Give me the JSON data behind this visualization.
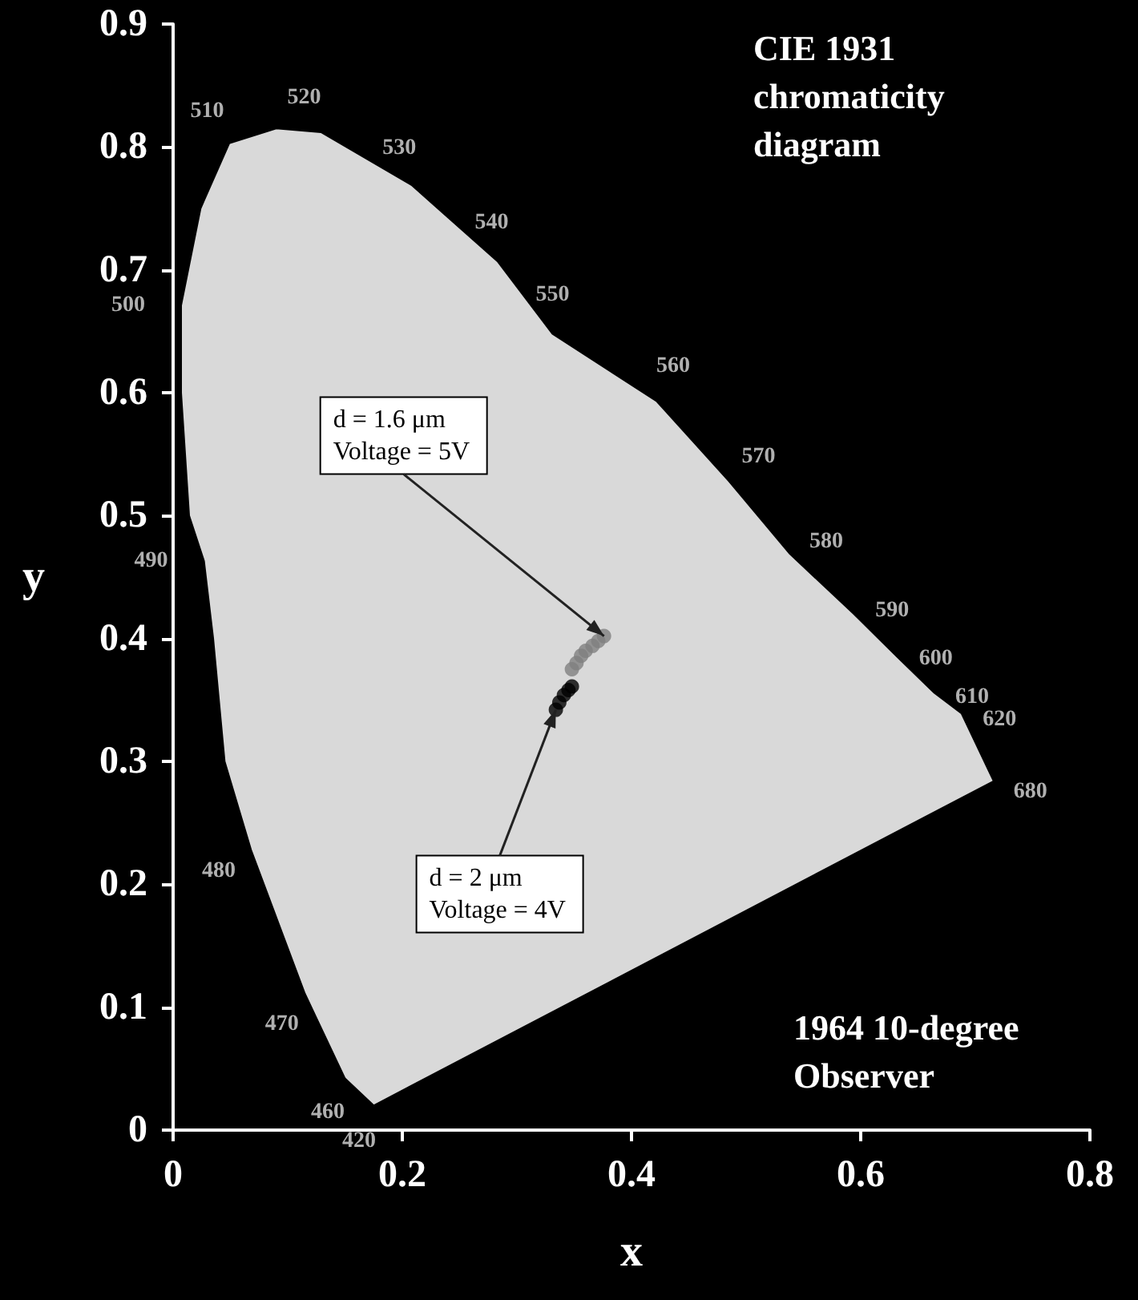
{
  "chart_data": {
    "type": "scatter",
    "title": "CIE 1931 chromaticity diagram",
    "xlabel": "x",
    "ylabel": "y",
    "xlim": [
      0,
      0.8
    ],
    "xticks": [
      0,
      0.2,
      0.4,
      0.6,
      0.8
    ],
    "ylim": [
      0,
      0.9
    ],
    "yticks": [
      0,
      0.1,
      0.2,
      0.3,
      0.4,
      0.5,
      0.6,
      0.7,
      0.8,
      0.9
    ],
    "grid": false,
    "series": [
      {
        "type": "area",
        "marker": "none",
        "color": "#d9d9d9",
        "x": [
          0.175,
          0.15,
          0.115,
          0.068,
          0.045,
          0.035,
          0.027,
          0.014,
          0.007,
          0.007,
          0.024,
          0.049,
          0.09,
          0.129,
          0.208,
          0.283,
          0.331,
          0.422,
          0.485,
          0.538,
          0.594,
          0.632,
          0.664,
          0.688,
          0.716,
          0.175
        ],
        "values": [
          0.02,
          0.042,
          0.111,
          0.228,
          0.3,
          0.4,
          0.463,
          0.5,
          0.6,
          0.671,
          0.75,
          0.803,
          0.815,
          0.812,
          0.769,
          0.707,
          0.648,
          0.593,
          0.528,
          0.469,
          0.42,
          0.385,
          0.356,
          0.339,
          0.284,
          0.02
        ]
      },
      {
        "marker": "circle",
        "color": "#808080",
        "x": [
          0.348,
          0.352,
          0.356,
          0.36,
          0.366,
          0.371,
          0.376
        ],
        "values": [
          0.375,
          0.38,
          0.386,
          0.39,
          0.394,
          0.398,
          0.402
        ]
      },
      {
        "marker": "circle",
        "color": "#000000",
        "x": [
          0.334,
          0.337,
          0.341,
          0.345,
          0.348
        ],
        "values": [
          0.342,
          0.348,
          0.354,
          0.358,
          0.361
        ]
      }
    ],
    "annotations": [
      {
        "text": "d = 1.6 μm\nVoltage = 5V",
        "x": 0.376,
        "y": 0.402
      },
      {
        "text": "d = 2 μm\nVoltage = 4V",
        "x": 0.334,
        "y": 0.342
      },
      "1964 10-degree Observer",
      {
        "text": "420",
        "x": 0.175,
        "y": 0.02
      },
      {
        "text": "460",
        "x": 0.15,
        "y": 0.042
      },
      {
        "text": "470",
        "x": 0.115,
        "y": 0.111
      },
      {
        "text": "480",
        "x": 0.068,
        "y": 0.228
      },
      {
        "text": "490",
        "x": 0.027,
        "y": 0.463
      },
      {
        "text": "500",
        "x": 0.007,
        "y": 0.671
      },
      {
        "text": "510",
        "x": 0.049,
        "y": 0.803
      },
      {
        "text": "520",
        "x": 0.129,
        "y": 0.812
      },
      {
        "text": "530",
        "x": 0.208,
        "y": 0.769
      },
      {
        "text": "540",
        "x": 0.283,
        "y": 0.707
      },
      {
        "text": "550",
        "x": 0.331,
        "y": 0.648
      },
      {
        "text": "560",
        "x": 0.422,
        "y": 0.593
      },
      {
        "text": "570",
        "x": 0.485,
        "y": 0.528
      },
      {
        "text": "580",
        "x": 0.538,
        "y": 0.469
      },
      {
        "text": "590",
        "x": 0.594,
        "y": 0.42
      },
      {
        "text": "600",
        "x": 0.632,
        "y": 0.385
      },
      {
        "text": "610",
        "x": 0.664,
        "y": 0.356
      },
      {
        "text": "620",
        "x": 0.688,
        "y": 0.339
      },
      {
        "text": "680",
        "x": 0.716,
        "y": 0.284
      }
    ]
  }
}
